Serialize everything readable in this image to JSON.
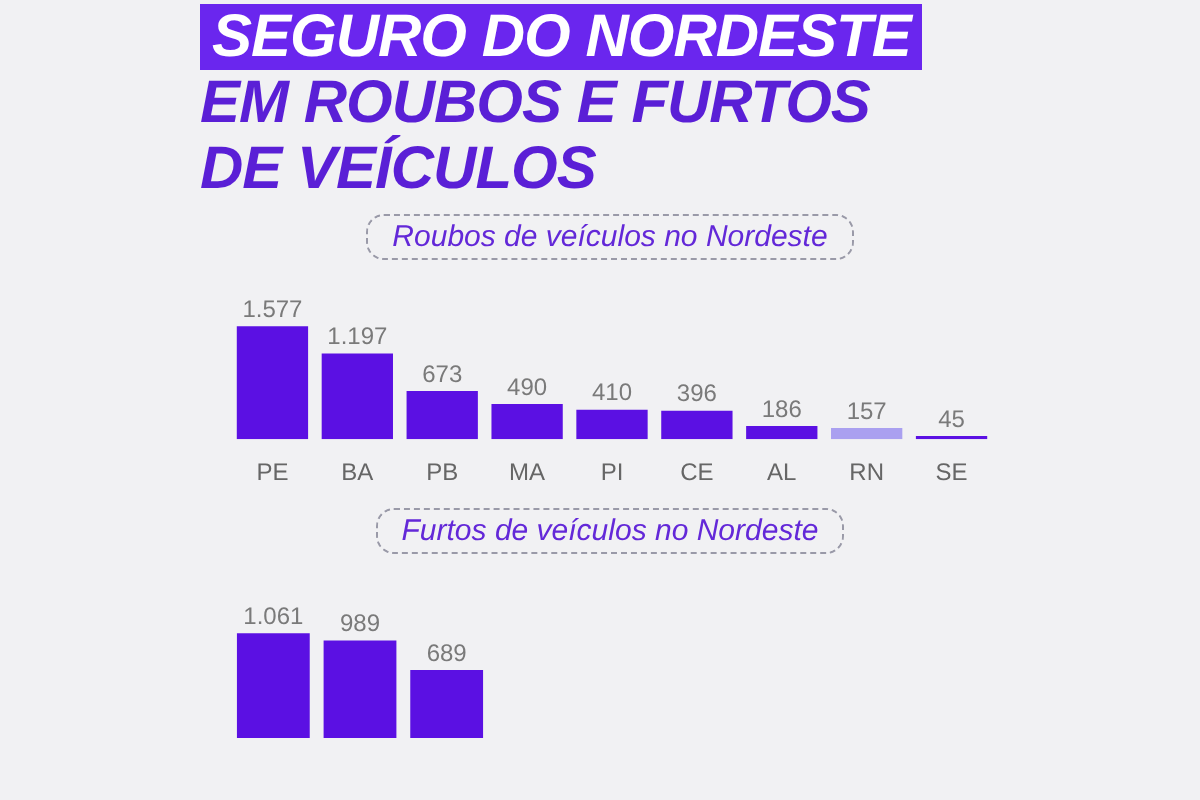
{
  "chart_data": [
    {
      "type": "bar",
      "title": "SEGURO DO NORDESTE\nEM ROUBOS E FURTOS\nDE VEÍCULOS",
      "subtitle": "Roubos de veículos no Nordeste",
      "categories": [
        "PE",
        "BA",
        "PB",
        "MA",
        "PI",
        "CE",
        "AL",
        "RN",
        "SE"
      ],
      "values": [
        1577,
        1197,
        673,
        490,
        410,
        396,
        186,
        157,
        45
      ],
      "colors": [
        "#5b10e3",
        "#5b10e3",
        "#5b10e3",
        "#5b10e3",
        "#5b10e3",
        "#5b10e3",
        "#5b10e3",
        "#aaa0f0",
        "#5b10e3"
      ],
      "value_labels": [
        "1.577",
        "1.197",
        "673",
        "490",
        "410",
        "396",
        "186",
        "157",
        "45"
      ],
      "tick_labels": "x"
    },
    {
      "type": "bar",
      "subtitle": "Furtos de veículos no Nordeste",
      "categories": [
        null,
        null,
        null
      ],
      "values": [
        1061,
        989,
        689
      ],
      "colors": [
        "#5b10e3",
        "#5b10e3",
        "#5b10e3"
      ],
      "value_labels": [
        "1.061",
        "989",
        "689"
      ],
      "tick_labels": false
    }
  ]
}
